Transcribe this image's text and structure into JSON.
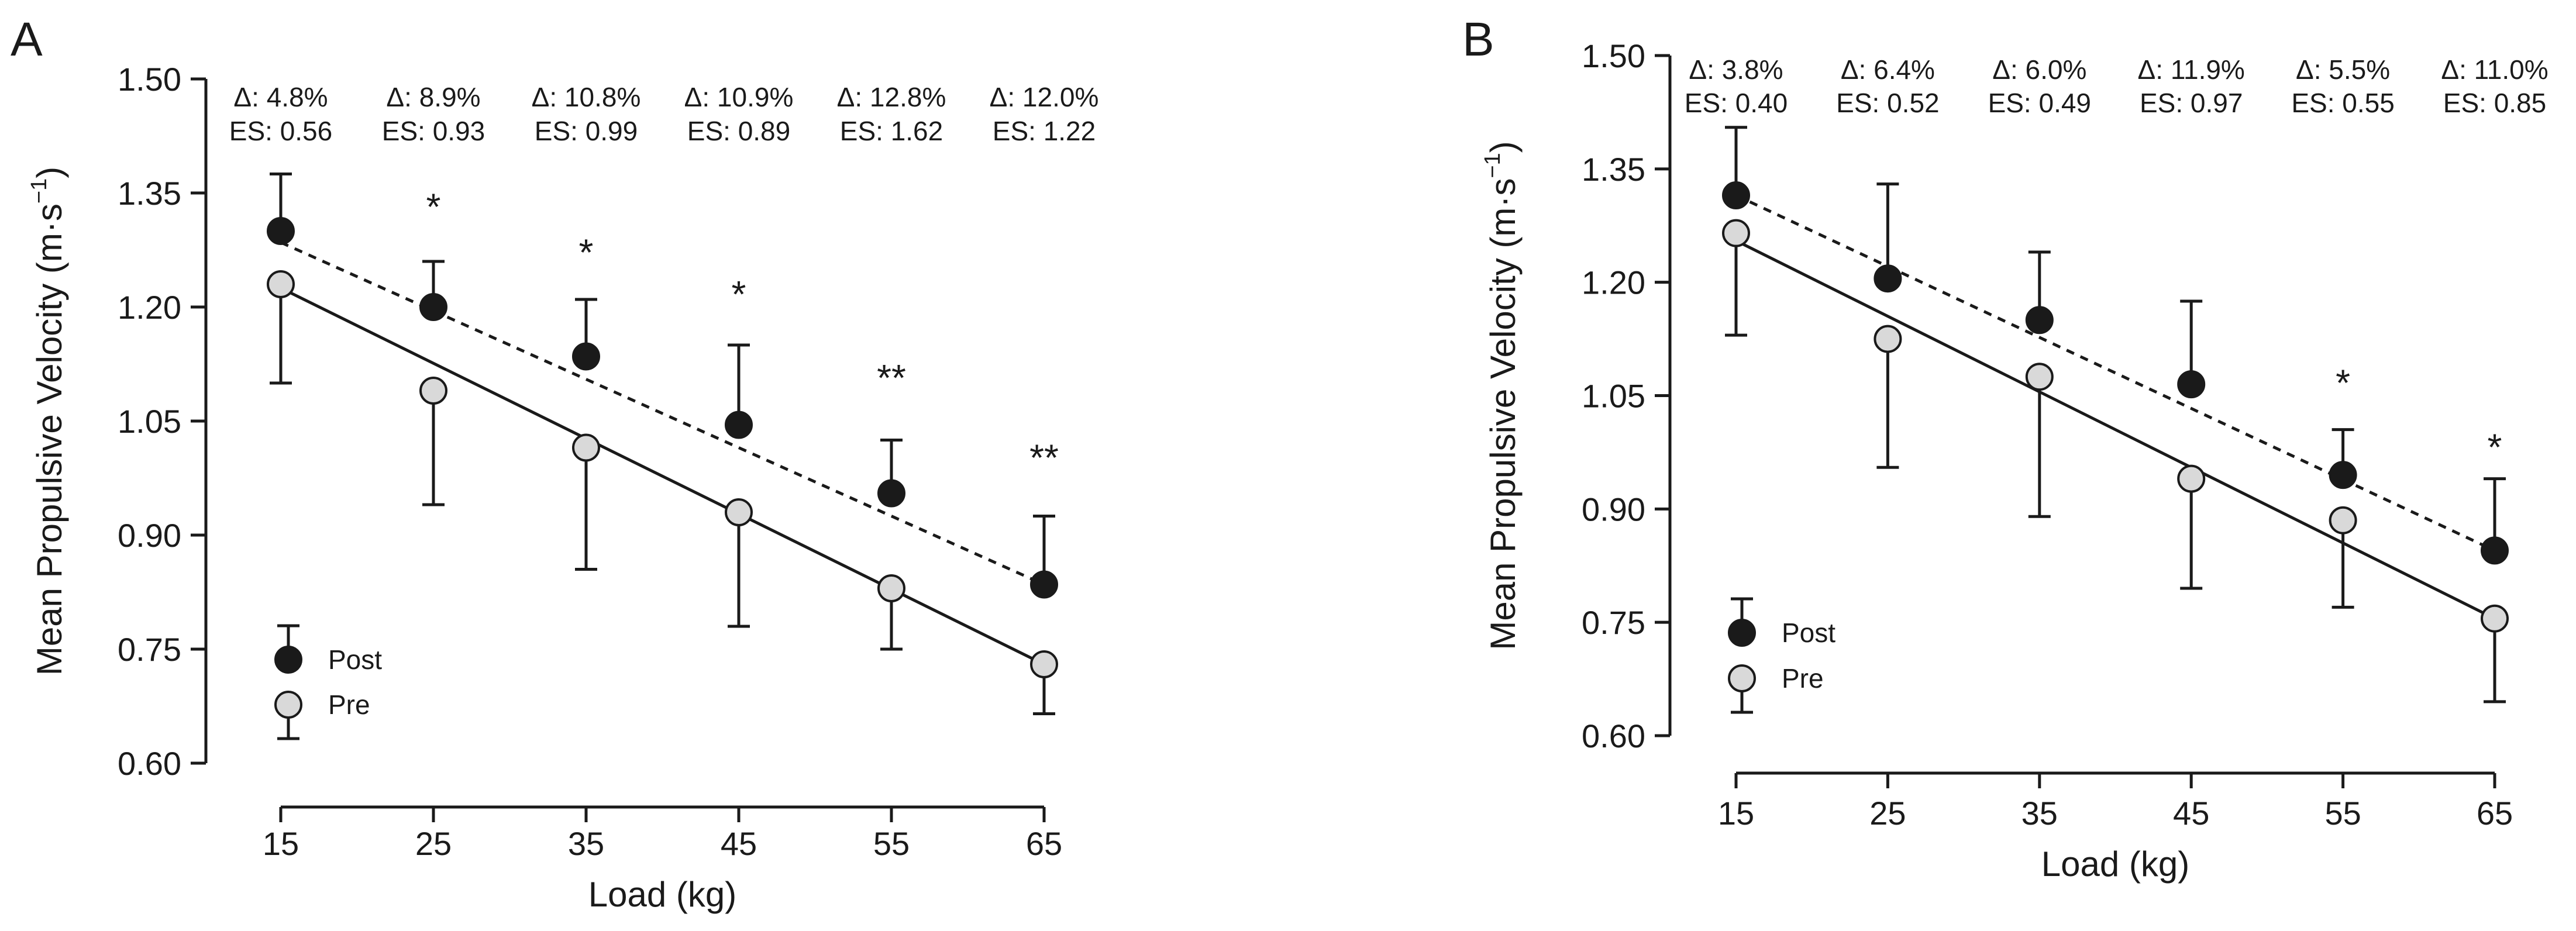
{
  "chart_data": [
    {
      "type": "scatter",
      "panel": "A",
      "xlabel": "Load (kg)",
      "ylabel": "Mean Propulsive Velocity (m·s",
      "ylabel_sup": "−1",
      "ylabel_close": ")",
      "x": [
        15,
        25,
        35,
        45,
        55,
        65
      ],
      "x_ticks": [
        "15",
        "25",
        "35",
        "45",
        "55",
        "65"
      ],
      "y_ticks": [
        "0.60",
        "0.75",
        "0.90",
        "1.05",
        "1.20",
        "1.35",
        "1.50"
      ],
      "y_tick_values": [
        0.6,
        0.75,
        0.9,
        1.05,
        1.2,
        1.35,
        1.5
      ],
      "ylim": [
        0.6,
        1.5
      ],
      "series": [
        {
          "name": "Post",
          "values": [
            1.3,
            1.2,
            1.135,
            1.045,
            0.955,
            0.835
          ],
          "error_up": [
            1.375,
            1.26,
            1.21,
            1.15,
            1.025,
            0.925
          ],
          "error_dir": "up",
          "fit": [
            1.285,
            0.835
          ]
        },
        {
          "name": "Pre",
          "values": [
            1.23,
            1.09,
            1.015,
            0.93,
            0.83,
            0.73
          ],
          "error_down": [
            1.1,
            0.94,
            0.855,
            0.78,
            0.75,
            0.665
          ],
          "error_dir": "down",
          "fit": [
            1.225,
            0.73
          ]
        }
      ],
      "delta": [
        "Δ: 4.8%",
        "Δ: 8.9%",
        "Δ: 10.8%",
        "Δ: 10.9%",
        "Δ: 12.8%",
        "Δ: 12.0%"
      ],
      "effect_size": [
        "ES: 0.56",
        "ES: 0.93",
        "ES: 0.99",
        "ES: 0.89",
        "ES: 1.62",
        "ES: 1.22"
      ],
      "significance": [
        "",
        "*",
        "*",
        "*",
        "**",
        "**"
      ],
      "sig_y": [
        0,
        1.315,
        1.255,
        1.2,
        1.09,
        0.985
      ],
      "legend": {
        "post": "Post",
        "pre": "Pre"
      }
    },
    {
      "type": "scatter",
      "panel": "B",
      "xlabel": "Load (kg)",
      "ylabel": "Mean Propulsive Velocity (m·s",
      "ylabel_sup": "−1",
      "ylabel_close": ")",
      "x": [
        15,
        25,
        35,
        45,
        55,
        65
      ],
      "x_ticks": [
        "15",
        "25",
        "35",
        "45",
        "55",
        "65"
      ],
      "y_ticks": [
        "0.60",
        "0.75",
        "0.90",
        "1.05",
        "1.20",
        "1.35",
        "1.50"
      ],
      "y_tick_values": [
        0.6,
        0.75,
        0.9,
        1.05,
        1.2,
        1.35,
        1.5
      ],
      "ylim": [
        0.6,
        1.5
      ],
      "series": [
        {
          "name": "Post",
          "values": [
            1.315,
            1.205,
            1.15,
            1.065,
            0.945,
            0.845
          ],
          "error_up": [
            1.405,
            1.33,
            1.24,
            1.175,
            1.005,
            0.94
          ],
          "error_dir": "up",
          "fit": [
            1.315,
            0.845
          ]
        },
        {
          "name": "Pre",
          "values": [
            1.265,
            1.125,
            1.075,
            0.94,
            0.885,
            0.755
          ],
          "error_down": [
            1.13,
            0.955,
            0.89,
            0.795,
            0.77,
            0.645
          ],
          "error_dir": "down",
          "fit": [
            1.255,
            0.755
          ]
        }
      ],
      "delta": [
        "Δ: 3.8%",
        "Δ: 6.4%",
        "Δ: 6.0%",
        "Δ: 11.9%",
        "Δ: 5.5%",
        "Δ: 11.0%"
      ],
      "effect_size": [
        "ES: 0.40",
        "ES: 0.52",
        "ES: 0.49",
        "ES: 0.97",
        "ES: 0.55",
        "ES: 0.85"
      ],
      "significance": [
        "",
        "",
        "",
        "",
        "*",
        "*"
      ],
      "sig_y": [
        0,
        0,
        0,
        0,
        1.05,
        0.965
      ],
      "legend": {
        "post": "Post",
        "pre": "Pre"
      }
    }
  ]
}
